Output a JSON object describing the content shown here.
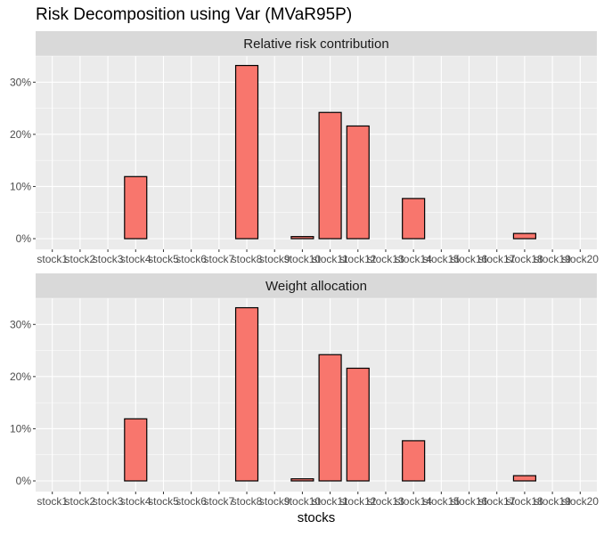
{
  "chart_data": {
    "type": "bar",
    "title": "Risk Decomposition using Var (MVaR95P)",
    "xlabel": "stocks",
    "ylabel": "",
    "categories": [
      "stock1",
      "stock2",
      "stock3",
      "stock4",
      "stock5",
      "stock6",
      "stock7",
      "stock8",
      "stock9",
      "stock10",
      "stock11",
      "stock12",
      "stock13",
      "stock14",
      "stock15",
      "stock16",
      "stock17",
      "stock18",
      "stock19",
      "stock20"
    ],
    "ylim": [
      0,
      0.35
    ],
    "yticks": [
      0,
      0.1,
      0.2,
      0.3
    ],
    "ytick_labels": [
      "0%",
      "10%",
      "20%",
      "30%"
    ],
    "grid": true,
    "legend": "none",
    "colors": {
      "bar_fill": "#F8766D",
      "bar_stroke": "#000000",
      "panel_bg": "#EBEBEB",
      "strip_bg": "#D9D9D9",
      "grid": "#FFFFFF"
    },
    "panels": [
      {
        "name": "Relative risk contribution",
        "values": [
          0,
          0,
          0,
          0.119,
          0,
          0,
          0,
          0.332,
          0,
          0.004,
          0.242,
          0.216,
          0,
          0.077,
          0,
          0,
          0,
          0.01,
          0,
          0
        ]
      },
      {
        "name": "Weight allocation",
        "values": [
          0,
          0,
          0,
          0.119,
          0,
          0,
          0,
          0.332,
          0,
          0.004,
          0.242,
          0.216,
          0,
          0.077,
          0,
          0,
          0,
          0.01,
          0,
          0
        ]
      }
    ]
  }
}
